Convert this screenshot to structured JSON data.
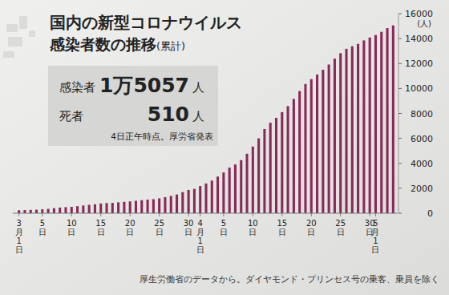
{
  "chart_data": {
    "type": "bar",
    "title": [
      "国内の新型コロナウイルス",
      "感染者数の推移"
    ],
    "title_note": "(累計)",
    "summary": [
      {
        "label": "感染者",
        "value": "1万5057",
        "unit": "人"
      },
      {
        "label": "死者",
        "value": "510",
        "unit": "人"
      }
    ],
    "summary_note": "4日正午時点。厚労省発表",
    "source": "厚生労働省のデータから。ダイヤモンド・プリンセス号の乗客、乗員を除く",
    "y_label": "(人)",
    "categories": [
      "3月1日",
      null,
      null,
      null,
      "5日",
      null,
      null,
      null,
      null,
      "10日",
      null,
      null,
      null,
      null,
      "15日",
      null,
      null,
      null,
      null,
      "20日",
      null,
      null,
      null,
      null,
      "25日",
      null,
      null,
      null,
      null,
      "30日",
      null,
      "4月1日",
      null,
      null,
      null,
      "5日",
      null,
      null,
      null,
      null,
      "10日",
      null,
      null,
      null,
      null,
      "15日",
      null,
      null,
      null,
      null,
      "20日",
      null,
      null,
      null,
      null,
      "25日",
      null,
      null,
      null,
      null,
      "30日",
      "5月1日",
      null,
      null,
      null
    ],
    "values": [
      239,
      254,
      268,
      284,
      317,
      348,
      407,
      454,
      488,
      514,
      568,
      620,
      675,
      716,
      780,
      814,
      829,
      873,
      914,
      950,
      996,
      1046,
      1089,
      1128,
      1193,
      1291,
      1387,
      1499,
      1693,
      1866,
      1953,
      2178,
      2384,
      2617,
      2935,
      3271,
      3654,
      3906,
      4257,
      4768,
      5347,
      6005,
      6748,
      7255,
      7645,
      8100,
      8582,
      9167,
      9795,
      10361,
      10751,
      11118,
      11496,
      11919,
      12388,
      12829,
      13182,
      13385,
      13576,
      13852,
      14088,
      14281,
      14544,
      14839,
      15057
    ],
    "color": "#862a57",
    "ylim": [
      0,
      16000
    ],
    "yticks": [
      0,
      2000,
      4000,
      6000,
      8000,
      10000,
      12000,
      14000,
      16000
    ],
    "grid": false
  }
}
